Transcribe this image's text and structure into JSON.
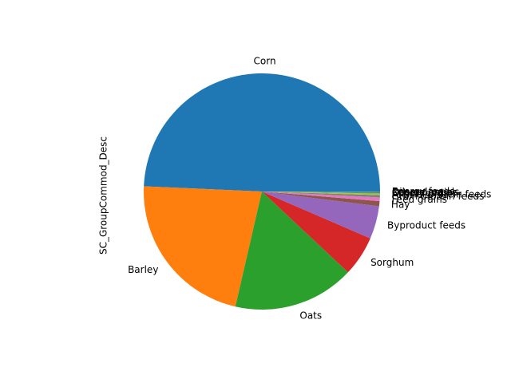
{
  "chart_data": {
    "type": "pie",
    "ylabel": "SC_GroupCommod_Desc",
    "start_angle_deg": 0,
    "direction": "counterclockwise",
    "slices": [
      {
        "label": "Corn",
        "value": 49.3,
        "color": "#1f77b4"
      },
      {
        "label": "Barley",
        "value": 22.1,
        "color": "#ff7f0e"
      },
      {
        "label": "Oats",
        "value": 16.6,
        "color": "#2ca02c"
      },
      {
        "label": "Sorghum",
        "value": 5.5,
        "color": "#d62728"
      },
      {
        "label": "Byproduct feeds",
        "value": 4.5,
        "color": "#9467bd"
      },
      {
        "label": "Hay",
        "value": 0.7,
        "color": "#8c564b"
      },
      {
        "label": "Feed grains",
        "value": 0.5,
        "color": "#e377c2"
      },
      {
        "label": "Grain protein feeds",
        "value": 0.3,
        "color": "#7f7f7f"
      },
      {
        "label": "Animal protein feeds",
        "value": 0.2,
        "color": "#bcbd22"
      },
      {
        "label": "Other feeds",
        "value": 0.1,
        "color": "#17becf"
      },
      {
        "label": "Coarse grains",
        "value": 0.1,
        "color": "#1f77b4"
      },
      {
        "label": "Oilseed meals",
        "value": 0.05,
        "color": "#ff7f0e"
      },
      {
        "label": "Energy feeds",
        "value": 0.05,
        "color": "#2ca02c"
      }
    ]
  }
}
